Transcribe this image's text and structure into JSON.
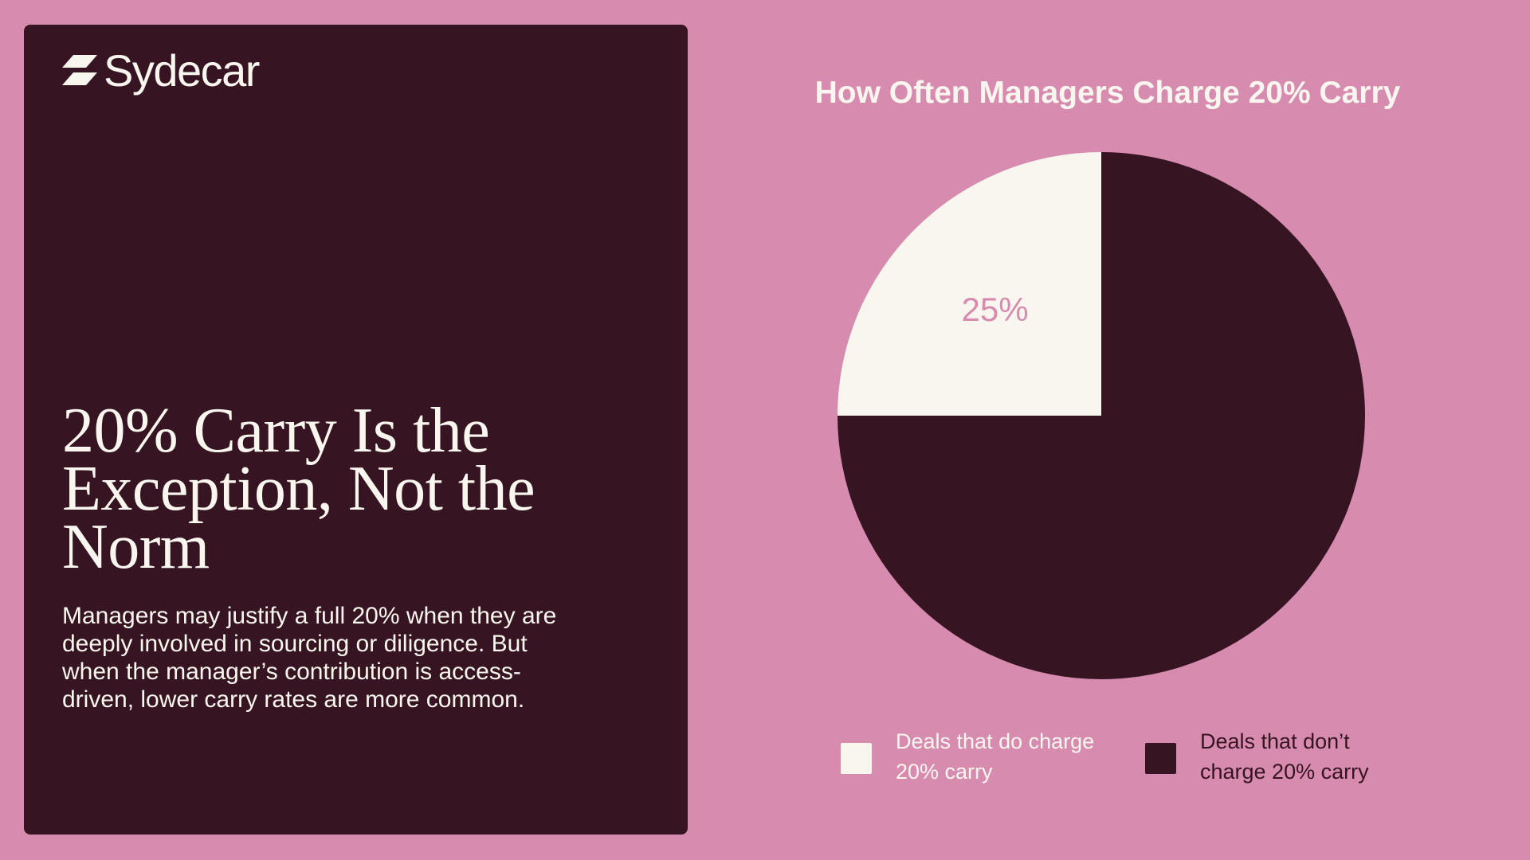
{
  "brand": {
    "name": "Sydecar"
  },
  "left_panel": {
    "headline": "20% Carry Is the Exception, Not the Norm",
    "body": "Managers may justify a full 20% when they are deeply involved in sourcing or diligence. But when the manager’s contribution is access-driven, lower carry rates are more common."
  },
  "colors": {
    "background": "#d78caf",
    "panel": "#371422",
    "cream": "#f8f6ef",
    "label_pink": "#d78caf"
  },
  "chart_data": {
    "type": "pie",
    "title": "How Often Managers Charge 20% Carry",
    "slices": [
      {
        "label": "Deals that do charge 20% carry",
        "value": 25,
        "display": "25%",
        "color": "#f8f6ef",
        "show_label": true
      },
      {
        "label": "Deals that don’t charge 20% carry",
        "value": 75,
        "display": "75%",
        "color": "#371422",
        "show_label": false
      }
    ],
    "legend_position": "bottom"
  }
}
